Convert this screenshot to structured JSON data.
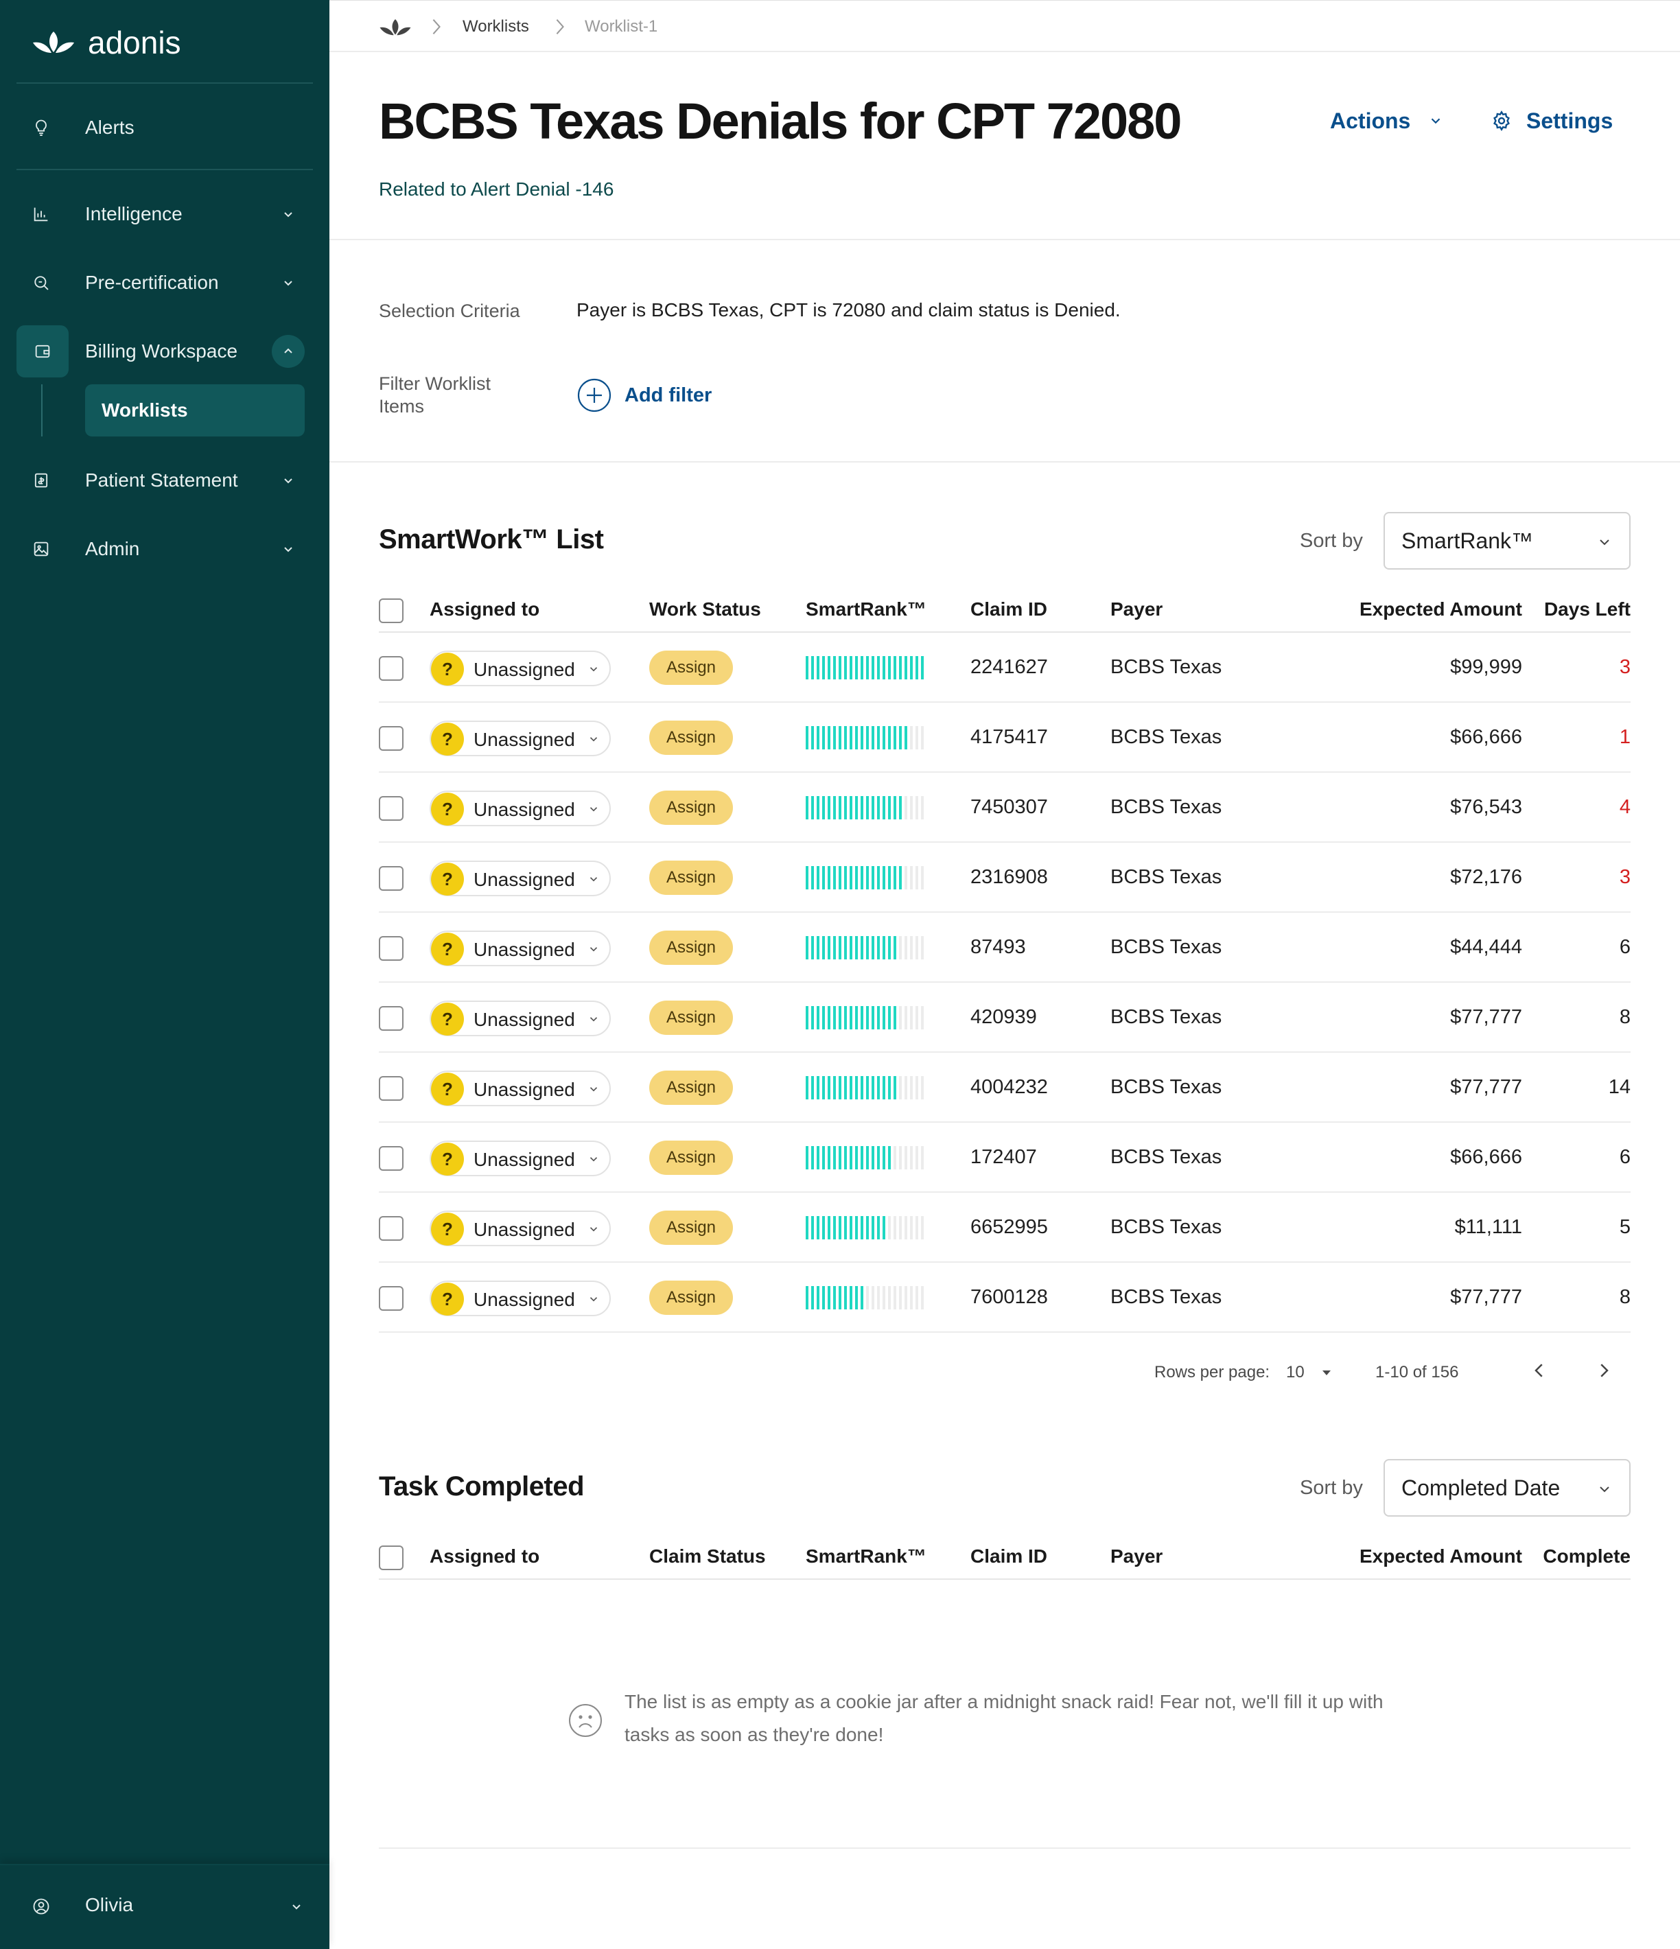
{
  "brand": {
    "name": "adonis"
  },
  "sidebar": {
    "items": [
      {
        "label": "Alerts",
        "icon": "lightbulb-icon"
      },
      {
        "label": "Intelligence",
        "icon": "bar-chart-icon"
      },
      {
        "label": "Pre-certification",
        "icon": "search-document-icon"
      },
      {
        "label": "Billing Workspace",
        "icon": "wallet-icon"
      },
      {
        "label": "Patient Statement",
        "icon": "statement-icon"
      },
      {
        "label": "Admin",
        "icon": "image-icon"
      }
    ],
    "sub_item": "Worklists",
    "user": "Olivia"
  },
  "breadcrumb": {
    "items": [
      "Worklists",
      "Worklist-1"
    ]
  },
  "header": {
    "title": "BCBS Texas Denials for CPT 72080",
    "subtitle": "Related to Alert Denial -146",
    "actions_label": "Actions",
    "settings_label": "Settings"
  },
  "criteria": {
    "selection_label": "Selection Criteria",
    "selection_value": "Payer is BCBS Texas, CPT is 72080 and claim status is Denied.",
    "filter_label_line1": "Filter Worklist",
    "filter_label_line2": "Items",
    "add_filter_label": "Add filter"
  },
  "smartwork": {
    "title": "SmartWork™ List",
    "sort_label": "Sort by",
    "sort_value": "SmartRank™",
    "columns": [
      "Assigned to",
      "Work Status",
      "SmartRank™",
      "Claim ID",
      "Payer",
      "Expected Amount",
      "Days Left"
    ],
    "rows": [
      {
        "assignee": "Unassigned",
        "status": "Assign",
        "rank": 1.0,
        "claim_id": "2241627",
        "payer": "BCBS Texas",
        "amount": "$99,999",
        "days_left": "3",
        "urgent": true
      },
      {
        "assignee": "Unassigned",
        "status": "Assign",
        "rank": 0.85,
        "claim_id": "4175417",
        "payer": "BCBS Texas",
        "amount": "$66,666",
        "days_left": "1",
        "urgent": true
      },
      {
        "assignee": "Unassigned",
        "status": "Assign",
        "rank": 0.8,
        "claim_id": "7450307",
        "payer": "BCBS Texas",
        "amount": "$76,543",
        "days_left": "4",
        "urgent": true
      },
      {
        "assignee": "Unassigned",
        "status": "Assign",
        "rank": 0.8,
        "claim_id": "2316908",
        "payer": "BCBS Texas",
        "amount": "$72,176",
        "days_left": "3",
        "urgent": true
      },
      {
        "assignee": "Unassigned",
        "status": "Assign",
        "rank": 0.76,
        "claim_id": "87493",
        "payer": "BCBS Texas",
        "amount": "$44,444",
        "days_left": "6",
        "urgent": false
      },
      {
        "assignee": "Unassigned",
        "status": "Assign",
        "rank": 0.76,
        "claim_id": "420939",
        "payer": "BCBS Texas",
        "amount": "$77,777",
        "days_left": "8",
        "urgent": false
      },
      {
        "assignee": "Unassigned",
        "status": "Assign",
        "rank": 0.76,
        "claim_id": "4004232",
        "payer": "BCBS Texas",
        "amount": "$77,777",
        "days_left": "14",
        "urgent": false
      },
      {
        "assignee": "Unassigned",
        "status": "Assign",
        "rank": 0.72,
        "claim_id": "172407",
        "payer": "BCBS Texas",
        "amount": "$66,666",
        "days_left": "6",
        "urgent": false
      },
      {
        "assignee": "Unassigned",
        "status": "Assign",
        "rank": 0.68,
        "claim_id": "6652995",
        "payer": "BCBS Texas",
        "amount": "$11,111",
        "days_left": "5",
        "urgent": false
      },
      {
        "assignee": "Unassigned",
        "status": "Assign",
        "rank": 0.52,
        "claim_id": "7600128",
        "payer": "BCBS Texas",
        "amount": "$77,777",
        "days_left": "8",
        "urgent": false
      }
    ],
    "pagination": {
      "rows_per_page_label": "Rows per page:",
      "rows_per_page_value": "10",
      "range": "1-10 of 156"
    }
  },
  "completed": {
    "title": "Task Completed",
    "sort_label": "Sort by",
    "sort_value": "Completed Date",
    "columns": [
      "Assigned to",
      "Claim Status",
      "SmartRank™",
      "Claim ID",
      "Payer",
      "Expected Amount",
      "Complete"
    ],
    "empty_message": "The list is as empty as a cookie jar after a midnight snack raid! Fear not, we'll fill it up with tasks as soon as they're done!"
  },
  "colors": {
    "sidebar_bg": "#073d3f",
    "accent_link": "#0a4f8c",
    "rank_fill": "#1fd8c2",
    "rank_empty": "#ececec",
    "assign_pill": "#f6d67a",
    "urgent_text": "#d42020",
    "avatar": "#f2cd12"
  }
}
